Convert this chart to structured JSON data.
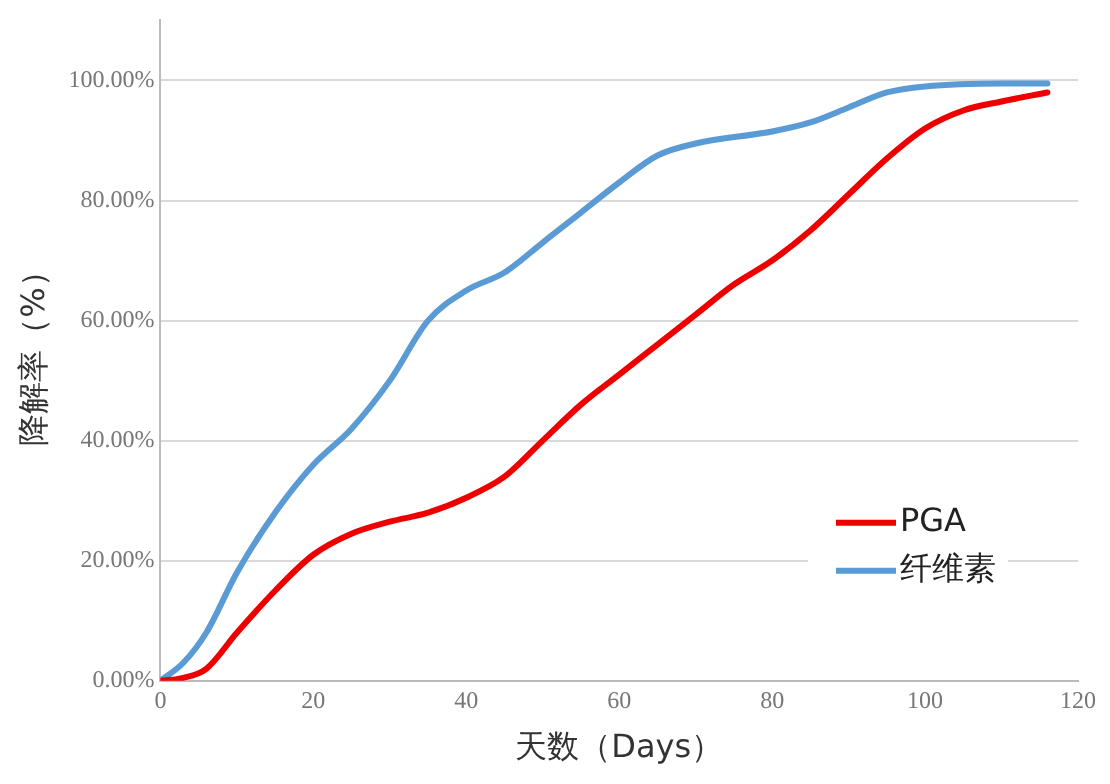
{
  "chart_data": {
    "type": "line",
    "xlabel": "天数（Days）",
    "ylabel": "降解率（%）",
    "xlim": [
      0,
      120
    ],
    "xticks": [
      0,
      20,
      40,
      60,
      80,
      100,
      120
    ],
    "ylim": [
      0,
      110
    ],
    "yticks": [
      {
        "value": 0,
        "label": "0.00%"
      },
      {
        "value": 20,
        "label": "20.00%"
      },
      {
        "value": 40,
        "label": "40.00%"
      },
      {
        "value": 60,
        "label": "60.00%"
      },
      {
        "value": 80,
        "label": "80.00%"
      },
      {
        "value": 100,
        "label": "100.00%"
      }
    ],
    "grid": "y",
    "legend": "bottom right",
    "marker": "none",
    "line_style": "solid",
    "series": [
      {
        "name": "PGA",
        "color": "#ee0000",
        "x": [
          0,
          3,
          6,
          10,
          15,
          20,
          25,
          30,
          35,
          40,
          45,
          50,
          55,
          60,
          65,
          70,
          75,
          80,
          85,
          90,
          95,
          100,
          105,
          110,
          116
        ],
        "values": [
          0,
          0.5,
          2,
          8,
          15,
          21,
          24.5,
          26.5,
          28,
          30.5,
          34,
          40,
          46,
          51,
          56,
          61,
          66,
          70,
          75,
          81,
          87,
          92,
          95,
          96.5,
          98
        ]
      },
      {
        "name": "纤维素",
        "color": "#5b9bd5",
        "x": [
          0,
          3,
          6,
          10,
          15,
          20,
          25,
          30,
          35,
          40,
          45,
          50,
          55,
          60,
          65,
          70,
          80,
          85,
          90,
          95,
          100,
          110,
          116
        ],
        "values": [
          0,
          3,
          8,
          18,
          28,
          36,
          42,
          50,
          60,
          65,
          68,
          73,
          78,
          83,
          87.5,
          89.5,
          91.5,
          93,
          95.5,
          98,
          99,
          99.5,
          99.5
        ]
      }
    ]
  }
}
